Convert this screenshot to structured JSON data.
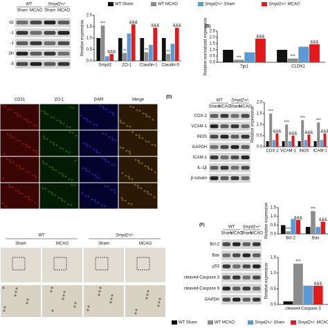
{
  "blots": [
    {
      "groups": [
        "WT",
        "Smyd2+/-"
      ],
      "conditions": [
        "Sham",
        "MCAO",
        "Sham",
        "MCAO"
      ],
      "rows": [
        "d2",
        "-1",
        "-1",
        "3H",
        "-5"
      ]
    },
    {
      "label": "(D)",
      "groups": [
        "WT",
        "Smyd2+/-"
      ],
      "conditions": [
        "Sham",
        "MCAO",
        "Sham",
        "MCAO"
      ],
      "rows": [
        "COX-2",
        "VCAM-1",
        "iNOS",
        "GAPDH",
        "ICAM-1",
        "IL-1β",
        "β-tubulin"
      ]
    },
    {
      "label": "(F)",
      "groups": [
        "WT",
        "Smyd2+/-"
      ],
      "conditions": [
        "Sham",
        "MCAO",
        "Sham",
        "MCAO"
      ],
      "rows": [
        "Bcl-2",
        "Bax",
        "p53",
        "cleaved-Caspase 3",
        "cleaved-Caspase 9",
        "GAPDH"
      ]
    }
  ],
  "if_panel": {
    "channels": [
      "CD31",
      "ZO-1",
      "DAPI",
      "Merge"
    ]
  },
  "histology": {
    "groups": [
      "WT",
      "Smyd2+/-"
    ],
    "conditions": [
      "Sham",
      "MCAO",
      "Sham",
      "MCAO"
    ]
  },
  "chart_data": [
    {
      "type": "bar",
      "ylabel": "Relative expression",
      "categories": [
        "Smyd2",
        "ZO-1",
        "Claudin-1",
        "Claudin-5"
      ],
      "ylim": [
        0,
        2
      ],
      "yticks": [
        {
          "value": 0,
          "label": "0.0"
        },
        {
          "value": 0.5,
          "label": "0.5"
        },
        {
          "value": 1,
          "label": "1.0"
        },
        {
          "value": 1.5,
          "label": "1.5"
        },
        {
          "value": 2,
          "label": "2.0"
        }
      ],
      "series": [
        {
          "name": "WT Sham",
          "color": "#111111",
          "values": [
            1,
            1,
            1,
            1
          ]
        },
        {
          "name": "WT MCAO",
          "color": "#8c8c8c",
          "values": [
            1.55,
            0.35,
            0.38,
            0.3
          ],
          "stars": [
            "***",
            "**",
            "**",
            "**"
          ]
        },
        {
          "name": "Smyd2+/- Sham",
          "color": "#5b9bd5",
          "values": [
            0.2,
            1.2,
            0.7,
            0.75
          ]
        },
        {
          "name": "Smyd2+/- MCAO",
          "color": "#e31a1c",
          "values": [
            0.3,
            1.6,
            1.45,
            1.45
          ],
          "stars": [
            "&&&",
            "&&&",
            "&&&",
            "&&&"
          ]
        }
      ]
    },
    {
      "type": "bar",
      "label": "(B)",
      "ylabel": "Relative normalized expression",
      "categories": [
        "Tjp1",
        "CLDN1"
      ],
      "ylim": [
        0,
        2.5
      ],
      "yticks": [
        {
          "value": 0,
          "label": "0.0"
        },
        {
          "value": 0.5,
          "label": "0.5"
        },
        {
          "value": 1,
          "label": "1.0"
        },
        {
          "value": 1.5,
          "label": "1.5"
        },
        {
          "value": 2,
          "label": "2.0"
        },
        {
          "value": 2.5,
          "label": "2.5"
        }
      ],
      "series": [
        {
          "name": "WT Sham",
          "color": "#111111",
          "values": [
            1,
            1
          ]
        },
        {
          "name": "WT MCAO",
          "color": "#8c8c8c",
          "values": [
            0.2,
            0.3
          ],
          "stars": [
            "***",
            "***"
          ]
        },
        {
          "name": "Smyd2+/- Sham",
          "color": "#5b9bd5",
          "values": [
            0.8,
            1.25
          ]
        },
        {
          "name": "Smyd2+/- MCAO",
          "color": "#e31a1c",
          "values": [
            1.9,
            1.45
          ],
          "stars": [
            "&&&",
            "&&&"
          ]
        }
      ]
    },
    {
      "type": "bar",
      "ylabel": "Relative expression",
      "categories": [
        "COX-2",
        "VCAM-1",
        "iNOS",
        "ICAM-1"
      ],
      "ylim": [
        0,
        2
      ],
      "yticks": [
        {
          "value": 0,
          "label": "0.0"
        },
        {
          "value": 0.5,
          "label": "0.5"
        },
        {
          "value": 1,
          "label": "1.0"
        },
        {
          "value": 1.5,
          "label": "1.5"
        },
        {
          "value": 2,
          "label": "2.0"
        }
      ],
      "series": [
        {
          "name": "WT Sham",
          "color": "#111111",
          "values": [
            0.25,
            0.25,
            0.25,
            0.25
          ]
        },
        {
          "name": "WT MCAO",
          "color": "#8c8c8c",
          "values": [
            1.5,
            1.0,
            1.2,
            1.1
          ],
          "stars": [
            "***",
            "***",
            "***",
            "***"
          ]
        },
        {
          "name": "Smyd2+/- Sham",
          "color": "#5b9bd5",
          "values": [
            0.3,
            0.25,
            0.3,
            0.3
          ]
        },
        {
          "name": "Smyd2+/- MCAO",
          "color": "#e31a1c",
          "values": [
            0.6,
            0.5,
            0.55,
            0.6
          ],
          "stars": [
            "&&&",
            "&&&",
            "&&&",
            "&&&"
          ]
        }
      ]
    },
    {
      "type": "bar",
      "ylabel": "Relative expression",
      "categories": [
        "Bcl-2",
        "Bax"
      ],
      "ylim": [
        0,
        1.5
      ],
      "yticks": [
        {
          "value": 0,
          "label": "0.0"
        },
        {
          "value": 0.5,
          "label": "0.5"
        },
        {
          "value": 1,
          "label": "1.0"
        },
        {
          "value": 1.5,
          "label": "1.5"
        }
      ],
      "series": [
        {
          "name": "WT Sham",
          "color": "#111111",
          "values": [
            0.5,
            0.4
          ]
        },
        {
          "name": "WT MCAO",
          "color": "#8c8c8c",
          "values": [
            0.15,
            1.3
          ],
          "stars": [
            "***",
            "***"
          ]
        },
        {
          "name": "Smyd2+/- Sham",
          "color": "#5b9bd5",
          "values": [
            0.85,
            0.4
          ]
        },
        {
          "name": "Smyd2+/- MCAO",
          "color": "#e31a1c",
          "values": [
            0.8,
            0.7
          ],
          "stars": [
            "&&&",
            "&&&"
          ]
        }
      ]
    },
    {
      "type": "bar",
      "ylabel": "Relative expression",
      "categories": [
        "cleaved-Caspase 3"
      ],
      "ylim": [
        0,
        1.5
      ],
      "yticks": [
        {
          "value": 0,
          "label": "0.0"
        },
        {
          "value": 0.5,
          "label": "0.5"
        },
        {
          "value": 1,
          "label": "1.0"
        },
        {
          "value": 1.5,
          "label": "1.5"
        }
      ],
      "series": [
        {
          "name": "WT Sham",
          "color": "#111111",
          "values": [
            0.1
          ]
        },
        {
          "name": "WT MCAO",
          "color": "#8c8c8c",
          "values": [
            1.3
          ],
          "stars": [
            "***"
          ]
        },
        {
          "name": "Smyd2+/- Sham",
          "color": "#5b9bd5",
          "values": [
            0.6
          ]
        },
        {
          "name": "Smyd2+/- MCAO",
          "color": "#e31a1c",
          "values": [
            0.6
          ],
          "stars": [
            "&&&"
          ]
        }
      ]
    }
  ]
}
